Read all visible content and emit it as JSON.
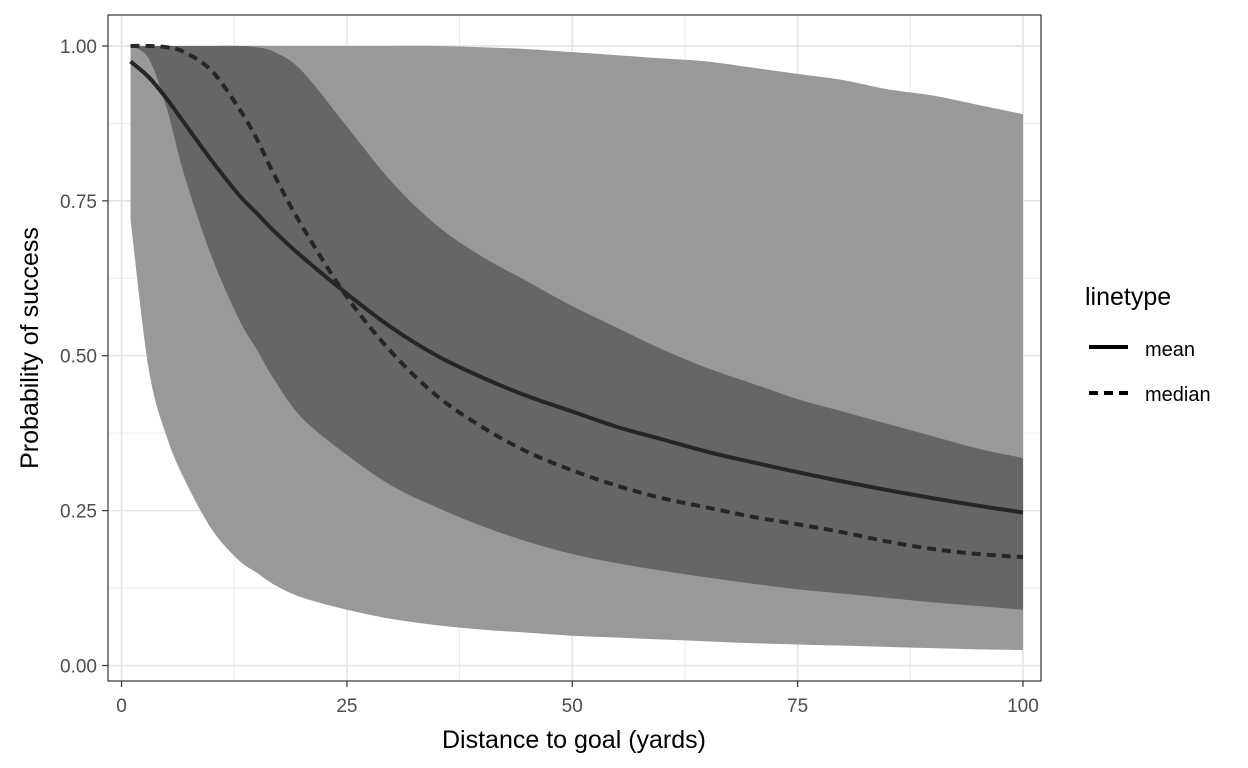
{
  "chart_data": {
    "type": "area",
    "title": "",
    "xlabel": "Distance to goal (yards)",
    "ylabel": "Probability of success",
    "xlim": [
      -1.5,
      102
    ],
    "ylim": [
      -0.025,
      1.05
    ],
    "x_ticks": [
      0,
      25,
      50,
      75,
      100
    ],
    "x_tick_labels": [
      "0",
      "25",
      "50",
      "75",
      "100"
    ],
    "y_ticks": [
      0,
      0.25,
      0.5,
      0.75,
      1.0
    ],
    "y_tick_labels": [
      "0.00",
      "0.25",
      "0.50",
      "0.75",
      "1.00"
    ],
    "grid": true,
    "legend": {
      "title": "linetype",
      "placement": "right",
      "entries": [
        "mean",
        "median"
      ]
    },
    "x": [
      1,
      3,
      5,
      7,
      10,
      13,
      15,
      17,
      20,
      25,
      30,
      35,
      40,
      45,
      50,
      55,
      60,
      65,
      70,
      75,
      80,
      85,
      90,
      95,
      100
    ],
    "bands": [
      {
        "name": "outer",
        "color": "#999999",
        "lower": [
          0.72,
          0.48,
          0.37,
          0.3,
          0.22,
          0.17,
          0.15,
          0.13,
          0.11,
          0.09,
          0.075,
          0.065,
          0.058,
          0.053,
          0.048,
          0.045,
          0.042,
          0.039,
          0.036,
          0.034,
          0.032,
          0.03,
          0.028,
          0.026,
          0.025
        ],
        "upper": [
          1.0,
          1.0,
          1.0,
          1.0,
          1.0,
          1.0,
          1.0,
          1.0,
          1.0,
          1.0,
          1.0,
          1.0,
          0.998,
          0.995,
          0.99,
          0.985,
          0.98,
          0.975,
          0.965,
          0.955,
          0.945,
          0.93,
          0.92,
          0.905,
          0.89
        ]
      },
      {
        "name": "inner",
        "color": "#666666",
        "lower": [
          1.0,
          0.98,
          0.9,
          0.79,
          0.66,
          0.56,
          0.51,
          0.46,
          0.4,
          0.34,
          0.29,
          0.255,
          0.225,
          0.2,
          0.18,
          0.165,
          0.153,
          0.142,
          0.132,
          0.123,
          0.116,
          0.109,
          0.102,
          0.096,
          0.09
        ],
        "upper": [
          1.0,
          1.0,
          1.0,
          1.0,
          1.0,
          1.0,
          0.998,
          0.99,
          0.96,
          0.87,
          0.78,
          0.71,
          0.66,
          0.62,
          0.58,
          0.545,
          0.51,
          0.48,
          0.455,
          0.43,
          0.41,
          0.39,
          0.37,
          0.35,
          0.335
        ]
      }
    ],
    "series": [
      {
        "name": "mean",
        "linetype": "solid",
        "color": "#262626",
        "values": [
          0.975,
          0.95,
          0.915,
          0.875,
          0.815,
          0.76,
          0.73,
          0.7,
          0.66,
          0.6,
          0.545,
          0.5,
          0.465,
          0.435,
          0.41,
          0.385,
          0.365,
          0.345,
          0.328,
          0.312,
          0.297,
          0.283,
          0.27,
          0.258,
          0.247
        ]
      },
      {
        "name": "median",
        "linetype": "dashed",
        "color": "#262626",
        "values": [
          1.0,
          1.0,
          0.998,
          0.99,
          0.96,
          0.9,
          0.85,
          0.79,
          0.71,
          0.595,
          0.505,
          0.435,
          0.385,
          0.345,
          0.315,
          0.29,
          0.27,
          0.255,
          0.24,
          0.228,
          0.215,
          0.2,
          0.188,
          0.18,
          0.175
        ]
      }
    ]
  }
}
